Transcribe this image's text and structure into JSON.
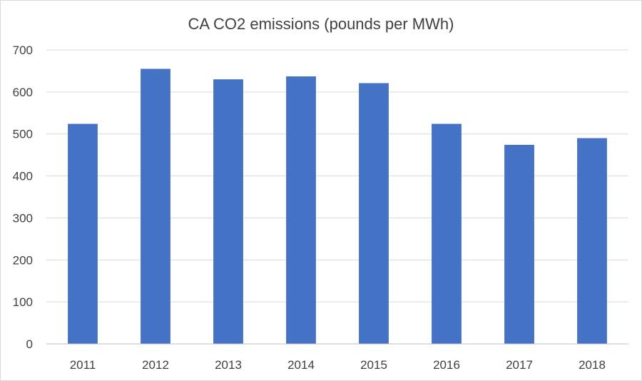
{
  "chart_data": {
    "type": "bar",
    "title": "CA CO2 emissions (pounds per MWh)",
    "xlabel": "",
    "ylabel": "",
    "categories": [
      "2011",
      "2012",
      "2013",
      "2014",
      "2015",
      "2016",
      "2017",
      "2018"
    ],
    "values": [
      524,
      655,
      630,
      637,
      621,
      524,
      474,
      490
    ],
    "ylim": [
      0,
      700
    ],
    "yticks": [
      "0",
      "100",
      "200",
      "300",
      "400",
      "500",
      "600",
      "700"
    ],
    "grid": true,
    "legend": "none",
    "bar_color": "#4472C4"
  }
}
